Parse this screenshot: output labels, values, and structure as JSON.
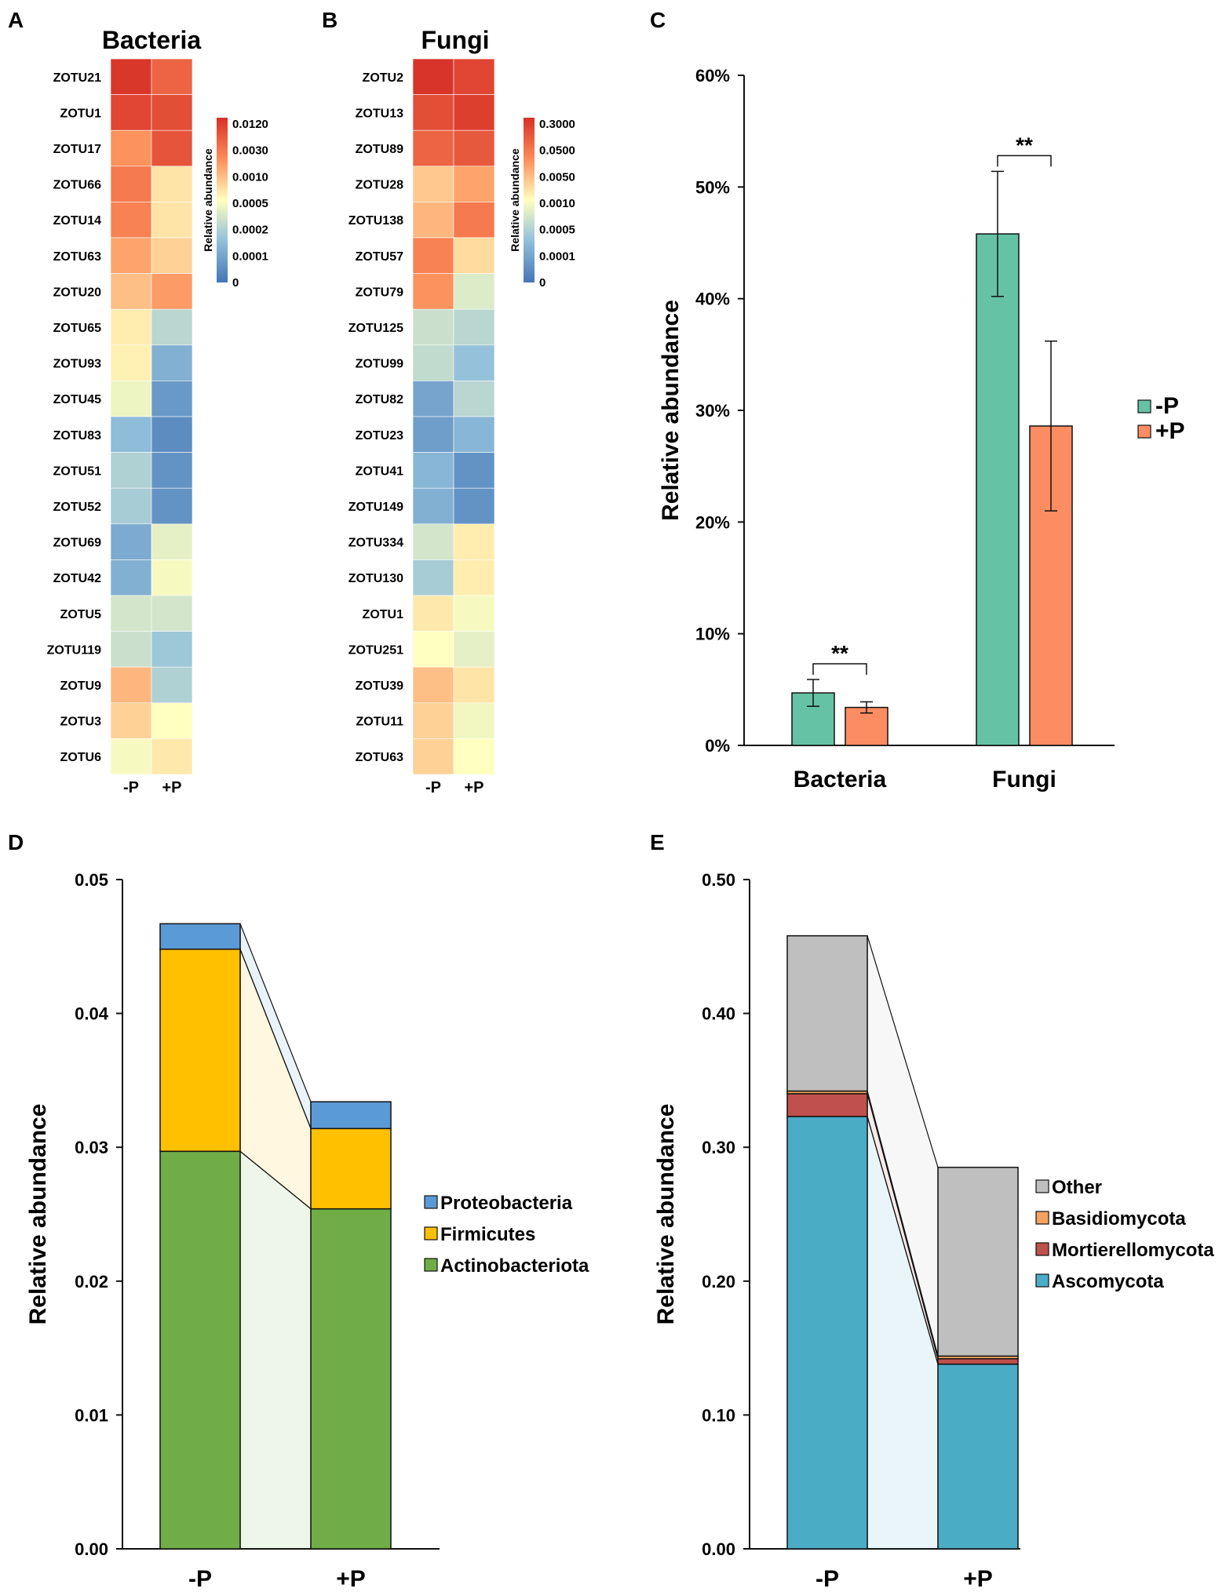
{
  "colors": {
    "minus_p": "#66c2a5",
    "plus_p": "#fc8d62",
    "proteobacteria": "#5b9bd5",
    "firmicutes": "#ffc000",
    "actinobacteriota": "#70ad47",
    "other": "#bfbfbf",
    "basidiomycota": "#f4a460",
    "mortierellomycota": "#c0504d",
    "ascomycota": "#4bacc6",
    "heat_low": "#4575b4",
    "heat_mid": "#ffffbf",
    "heat_high": "#d73027"
  },
  "chart_data": [
    {
      "panel": "A",
      "type": "heatmap",
      "title": "Bacteria",
      "columns": [
        "-P",
        "+P"
      ],
      "rows": [
        "ZOTU21",
        "ZOTU1",
        "ZOTU17",
        "ZOTU66",
        "ZOTU14",
        "ZOTU63",
        "ZOTU20",
        "ZOTU65",
        "ZOTU93",
        "ZOTU45",
        "ZOTU83",
        "ZOTU51",
        "ZOTU52",
        "ZOTU69",
        "ZOTU42",
        "ZOTU5",
        "ZOTU119",
        "ZOTU9",
        "ZOTU3",
        "ZOTU6"
      ],
      "values": [
        [
          0.98,
          0.86
        ],
        [
          0.94,
          0.92
        ],
        [
          0.74,
          0.9
        ],
        [
          0.8,
          0.56
        ],
        [
          0.78,
          0.56
        ],
        [
          0.7,
          0.6
        ],
        [
          0.64,
          0.72
        ],
        [
          0.54,
          0.34
        ],
        [
          0.53,
          0.2
        ],
        [
          0.46,
          0.12
        ],
        [
          0.24,
          0.08
        ],
        [
          0.32,
          0.1
        ],
        [
          0.3,
          0.1
        ],
        [
          0.18,
          0.44
        ],
        [
          0.2,
          0.48
        ],
        [
          0.4,
          0.4
        ],
        [
          0.38,
          0.28
        ],
        [
          0.66,
          0.32
        ],
        [
          0.6,
          0.5
        ],
        [
          0.48,
          0.55
        ]
      ],
      "colorbar": {
        "title": "Relative abundance",
        "labels": [
          "0.0120",
          "0.0030",
          "0.0010",
          "0.0005",
          "0.0002",
          "0.0001",
          "0"
        ]
      }
    },
    {
      "panel": "B",
      "type": "heatmap",
      "title": "Fungi",
      "columns": [
        "-P",
        "+P"
      ],
      "rows": [
        "ZOTU2",
        "ZOTU13",
        "ZOTU89",
        "ZOTU28",
        "ZOTU138",
        "ZOTU57",
        "ZOTU79",
        "ZOTU125",
        "ZOTU99",
        "ZOTU82",
        "ZOTU23",
        "ZOTU41",
        "ZOTU149",
        "ZOTU334",
        "ZOTU130",
        "ZOTU1",
        "ZOTU251",
        "ZOTU39",
        "ZOTU11",
        "ZOTU63"
      ],
      "values": [
        [
          0.99,
          0.94
        ],
        [
          0.92,
          0.96
        ],
        [
          0.86,
          0.89
        ],
        [
          0.62,
          0.7
        ],
        [
          0.66,
          0.8
        ],
        [
          0.78,
          0.58
        ],
        [
          0.74,
          0.42
        ],
        [
          0.38,
          0.34
        ],
        [
          0.36,
          0.26
        ],
        [
          0.16,
          0.34
        ],
        [
          0.14,
          0.22
        ],
        [
          0.22,
          0.1
        ],
        [
          0.2,
          0.1
        ],
        [
          0.4,
          0.54
        ],
        [
          0.3,
          0.54
        ],
        [
          0.55,
          0.48
        ],
        [
          0.5,
          0.44
        ],
        [
          0.64,
          0.56
        ],
        [
          0.6,
          0.47
        ],
        [
          0.6,
          0.5
        ]
      ],
      "colorbar": {
        "title": "Relative abundance",
        "labels": [
          "0.3000",
          "0.0500",
          "0.0050",
          "0.0010",
          "0.0005",
          "0.0001",
          "0"
        ]
      }
    },
    {
      "panel": "C",
      "type": "bar",
      "categories": [
        "Bacteria",
        "Fungi"
      ],
      "series": [
        {
          "name": "-P",
          "values": [
            4.7,
            45.8
          ],
          "errors": [
            1.2,
            5.6
          ]
        },
        {
          "name": "+P",
          "values": [
            3.4,
            28.6
          ],
          "errors": [
            0.5,
            7.6
          ]
        }
      ],
      "significance": [
        "**",
        "**"
      ],
      "ylabel": "Relative abundance",
      "ylim": [
        0,
        60
      ],
      "yticks": [
        "0%",
        "10%",
        "20%",
        "30%",
        "40%",
        "50%",
        "60%"
      ],
      "legend": [
        "-P",
        "+P"
      ]
    },
    {
      "panel": "D",
      "type": "bar",
      "stacked": true,
      "categories": [
        "-P",
        "+P"
      ],
      "series": [
        {
          "name": "Actinobacteriota",
          "values": [
            0.0297,
            0.0254
          ]
        },
        {
          "name": "Firmicutes",
          "values": [
            0.0151,
            0.006
          ]
        },
        {
          "name": "Proteobacteria",
          "values": [
            0.0019,
            0.002
          ]
        }
      ],
      "ylabel": "Relative abundance",
      "ylim": [
        0,
        0.05
      ],
      "yticks": [
        "0.00",
        "0.01",
        "0.02",
        "0.03",
        "0.04",
        "0.05"
      ],
      "legend": [
        "Proteobacteria",
        "Firmicutes",
        "Actinobacteriota"
      ]
    },
    {
      "panel": "E",
      "type": "bar",
      "stacked": true,
      "categories": [
        "-P",
        "+P"
      ],
      "series": [
        {
          "name": "Ascomycota",
          "values": [
            0.323,
            0.138
          ]
        },
        {
          "name": "Mortierellomycota",
          "values": [
            0.017,
            0.004
          ]
        },
        {
          "name": "Basidiomycota",
          "values": [
            0.002,
            0.002
          ]
        },
        {
          "name": "Other",
          "values": [
            0.116,
            0.141
          ]
        }
      ],
      "ylabel": "Relative abundance",
      "ylim": [
        0,
        0.5
      ],
      "yticks": [
        "0.00",
        "0.10",
        "0.20",
        "0.30",
        "0.40",
        "0.50"
      ],
      "legend": [
        "Other",
        "Basidiomycota",
        "Mortierellomycota",
        "Ascomycota"
      ]
    }
  ]
}
